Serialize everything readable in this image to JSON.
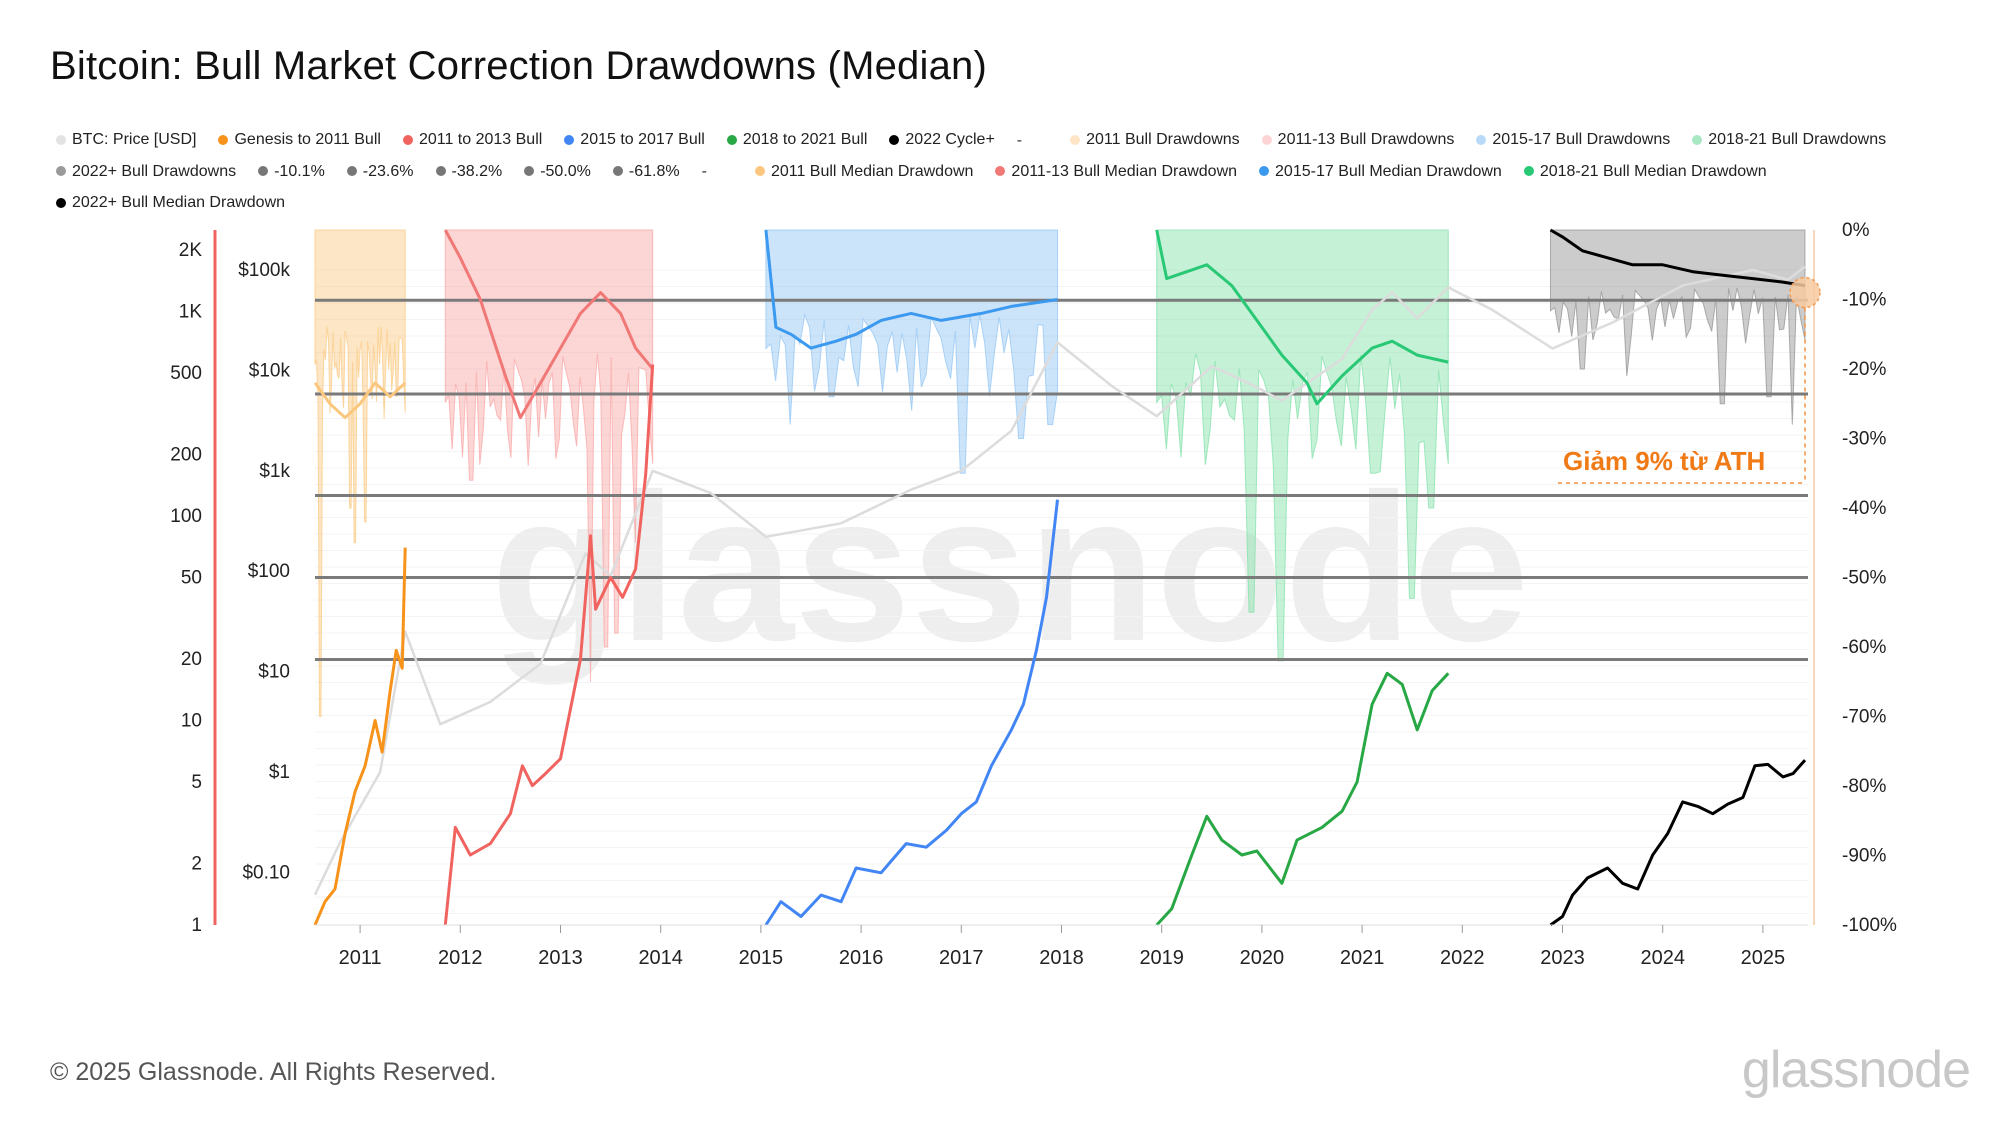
{
  "title": "Bitcoin: Bull Market Correction Drawdowns (Median)",
  "footer": "© 2025 Glassnode. All Rights Reserved.",
  "brand": "glassnode",
  "watermark": "glassnode",
  "annotation": "Giảm 9% từ ATH",
  "legend": [
    {
      "label": "BTC: Price [USD]",
      "color": "#e3e3e3"
    },
    {
      "label": "Genesis to 2011 Bull",
      "color": "#f7931a"
    },
    {
      "label": "2011 to 2013 Bull",
      "color": "#f0635f"
    },
    {
      "label": "2015 to 2017 Bull",
      "color": "#4285f4"
    },
    {
      "label": "2018 to 2021 Bull",
      "color": "#27a844"
    },
    {
      "label": "2022 Cycle+",
      "color": "#000000"
    },
    {
      "label": "-",
      "color": "",
      "sep": true
    },
    {
      "label": "2011 Bull Drawdowns",
      "color": "#fde5c5"
    },
    {
      "label": "2011-13 Bull Drawdowns",
      "color": "#fdd4d3"
    },
    {
      "label": "2015-17 Bull Drawdowns",
      "color": "#b9d9f8"
    },
    {
      "label": "2018-21 Bull Drawdowns",
      "color": "#a8e8c2"
    },
    {
      "label": "2022+ Bull Drawdowns",
      "color": "#9a9a9a"
    },
    {
      "label": "-10.1%",
      "color": "#777777"
    },
    {
      "label": "-23.6%",
      "color": "#777777"
    },
    {
      "label": "-38.2%",
      "color": "#777777"
    },
    {
      "label": "-50.0%",
      "color": "#777777"
    },
    {
      "label": "-61.8%",
      "color": "#777777"
    },
    {
      "label": "-",
      "color": "",
      "sep": true
    },
    {
      "label": "2011 Bull Median Drawdown",
      "color": "#fbc77e"
    },
    {
      "label": "2011-13 Bull Median Drawdown",
      "color": "#f07876"
    },
    {
      "label": "2015-17 Bull Median Drawdown",
      "color": "#3b99ef"
    },
    {
      "label": "2018-21 Bull Median Drawdown",
      "color": "#28c875"
    },
    {
      "label": "2022+ Bull Median Drawdown",
      "color": "#000000"
    }
  ],
  "chart_data": {
    "type": "line",
    "x_ticks": [
      "2011",
      "2012",
      "2013",
      "2014",
      "2015",
      "2016",
      "2017",
      "2018",
      "2019",
      "2020",
      "2021",
      "2022",
      "2023",
      "2024",
      "2025"
    ],
    "x_range": [
      2010.55,
      2025.45
    ],
    "y_left_outer_ticks": [
      "2K",
      "1K",
      "500",
      "200",
      "100",
      "50",
      "20",
      "10",
      "5",
      "2",
      "1"
    ],
    "y_left_outer_range": [
      1,
      2500
    ],
    "y_left_outer_scale": "log",
    "y_left_inner_ticks": [
      "$100k",
      "$10k",
      "$1k",
      "$100",
      "$10",
      "$1",
      "$0.10"
    ],
    "y_left_inner_range": [
      0.03,
      250000
    ],
    "y_left_inner_scale": "log",
    "y_right_ticks": [
      "0%",
      "-10%",
      "-20%",
      "-30%",
      "-40%",
      "-50%",
      "-60%",
      "-70%",
      "-80%",
      "-90%",
      "-100%"
    ],
    "y_right_range": [
      -100,
      0
    ],
    "fib_levels": [
      -10.1,
      -23.6,
      -38.2,
      -50.0,
      -61.8
    ],
    "series": [
      {
        "name": "BTC: Price [USD]",
        "color": "#dcdcdc",
        "axis": "price",
        "points": [
          [
            2010.55,
            0.06
          ],
          [
            2010.8,
            0.2
          ],
          [
            2011.2,
            1
          ],
          [
            2011.45,
            25
          ],
          [
            2011.8,
            3
          ],
          [
            2012.3,
            5
          ],
          [
            2012.8,
            12
          ],
          [
            2013.25,
            150
          ],
          [
            2013.5,
            90
          ],
          [
            2013.92,
            1000
          ],
          [
            2014.5,
            600
          ],
          [
            2015.05,
            220
          ],
          [
            2015.8,
            300
          ],
          [
            2016.5,
            650
          ],
          [
            2017.0,
            1000
          ],
          [
            2017.5,
            2500
          ],
          [
            2017.96,
            19000
          ],
          [
            2018.5,
            7000
          ],
          [
            2018.95,
            3500
          ],
          [
            2019.5,
            11000
          ],
          [
            2019.9,
            7200
          ],
          [
            2020.2,
            5000
          ],
          [
            2020.8,
            13000
          ],
          [
            2021.1,
            40000
          ],
          [
            2021.3,
            60000
          ],
          [
            2021.55,
            33000
          ],
          [
            2021.86,
            67000
          ],
          [
            2022.3,
            40000
          ],
          [
            2022.9,
            16500
          ],
          [
            2023.5,
            30000
          ],
          [
            2024.2,
            70000
          ],
          [
            2024.9,
            100000
          ],
          [
            2025.25,
            80000
          ],
          [
            2025.42,
            108000
          ]
        ]
      },
      {
        "name": "Genesis to 2011 Bull",
        "color": "#f7931a",
        "axis": "multiple",
        "points": [
          [
            2010.55,
            1.0
          ],
          [
            2010.65,
            1.3
          ],
          [
            2010.75,
            1.5
          ],
          [
            2010.85,
            2.8
          ],
          [
            2010.95,
            4.5
          ],
          [
            2011.05,
            6
          ],
          [
            2011.15,
            10
          ],
          [
            2011.22,
            7
          ],
          [
            2011.3,
            14
          ],
          [
            2011.36,
            22
          ],
          [
            2011.42,
            18
          ],
          [
            2011.45,
            70
          ]
        ]
      },
      {
        "name": "2011 to 2013 Bull",
        "color": "#f0635f",
        "axis": "multiple",
        "points": [
          [
            2011.85,
            1.0
          ],
          [
            2011.95,
            3.0
          ],
          [
            2012.1,
            2.2
          ],
          [
            2012.3,
            2.5
          ],
          [
            2012.5,
            3.5
          ],
          [
            2012.62,
            6
          ],
          [
            2012.72,
            4.8
          ],
          [
            2012.85,
            5.5
          ],
          [
            2013.0,
            6.5
          ],
          [
            2013.2,
            20
          ],
          [
            2013.3,
            80
          ],
          [
            2013.35,
            35
          ],
          [
            2013.5,
            50
          ],
          [
            2013.62,
            40
          ],
          [
            2013.75,
            55
          ],
          [
            2013.85,
            160
          ],
          [
            2013.92,
            550
          ]
        ]
      },
      {
        "name": "2015 to 2017 Bull",
        "color": "#4285f4",
        "axis": "multiple",
        "points": [
          [
            2015.05,
            1.0
          ],
          [
            2015.2,
            1.3
          ],
          [
            2015.4,
            1.1
          ],
          [
            2015.6,
            1.4
          ],
          [
            2015.8,
            1.3
          ],
          [
            2015.95,
            1.9
          ],
          [
            2016.2,
            1.8
          ],
          [
            2016.45,
            2.5
          ],
          [
            2016.65,
            2.4
          ],
          [
            2016.85,
            2.9
          ],
          [
            2017.0,
            3.5
          ],
          [
            2017.15,
            4
          ],
          [
            2017.3,
            6
          ],
          [
            2017.5,
            9
          ],
          [
            2017.62,
            12
          ],
          [
            2017.75,
            22
          ],
          [
            2017.85,
            40
          ],
          [
            2017.96,
            120
          ]
        ]
      },
      {
        "name": "2018 to 2021 Bull",
        "color": "#27a844",
        "axis": "multiple",
        "points": [
          [
            2018.95,
            1.0
          ],
          [
            2019.1,
            1.2
          ],
          [
            2019.3,
            2.2
          ],
          [
            2019.45,
            3.4
          ],
          [
            2019.6,
            2.6
          ],
          [
            2019.8,
            2.2
          ],
          [
            2019.95,
            2.3
          ],
          [
            2020.2,
            1.6
          ],
          [
            2020.35,
            2.6
          ],
          [
            2020.6,
            3
          ],
          [
            2020.8,
            3.6
          ],
          [
            2020.95,
            5
          ],
          [
            2021.1,
            12
          ],
          [
            2021.25,
            17
          ],
          [
            2021.4,
            15
          ],
          [
            2021.55,
            9
          ],
          [
            2021.7,
            14
          ],
          [
            2021.86,
            17
          ]
        ]
      },
      {
        "name": "2022 Cycle+",
        "color": "#000000",
        "axis": "multiple",
        "points": [
          [
            2022.88,
            1.0
          ],
          [
            2023.0,
            1.1
          ],
          [
            2023.1,
            1.4
          ],
          [
            2023.25,
            1.7
          ],
          [
            2023.45,
            1.9
          ],
          [
            2023.6,
            1.6
          ],
          [
            2023.75,
            1.5
          ],
          [
            2023.9,
            2.2
          ],
          [
            2024.05,
            2.8
          ],
          [
            2024.2,
            4.0
          ],
          [
            2024.35,
            3.8
          ],
          [
            2024.5,
            3.5
          ],
          [
            2024.65,
            3.9
          ],
          [
            2024.8,
            4.2
          ],
          [
            2024.92,
            6.0
          ],
          [
            2025.05,
            6.1
          ],
          [
            2025.2,
            5.3
          ],
          [
            2025.3,
            5.5
          ],
          [
            2025.42,
            6.4
          ]
        ]
      }
    ],
    "median_drawdowns": [
      {
        "name": "2011 Bull Median Drawdown",
        "color": "#fbc77e",
        "points": [
          [
            2010.55,
            -22
          ],
          [
            2010.7,
            -25
          ],
          [
            2010.85,
            -27
          ],
          [
            2011.0,
            -25
          ],
          [
            2011.15,
            -22
          ],
          [
            2011.3,
            -24
          ],
          [
            2011.45,
            -22
          ]
        ]
      },
      {
        "name": "2011-13 Bull Median Drawdown",
        "color": "#f07876",
        "points": [
          [
            2011.85,
            0
          ],
          [
            2012.0,
            -4
          ],
          [
            2012.2,
            -10
          ],
          [
            2012.45,
            -21
          ],
          [
            2012.6,
            -27
          ],
          [
            2012.8,
            -22
          ],
          [
            2013.0,
            -17
          ],
          [
            2013.2,
            -12
          ],
          [
            2013.4,
            -9
          ],
          [
            2013.6,
            -12
          ],
          [
            2013.75,
            -17
          ],
          [
            2013.92,
            -20
          ]
        ]
      },
      {
        "name": "2015-17 Bull Median Drawdown",
        "color": "#3b99ef",
        "points": [
          [
            2015.05,
            0
          ],
          [
            2015.15,
            -14
          ],
          [
            2015.3,
            -15
          ],
          [
            2015.5,
            -17
          ],
          [
            2015.75,
            -16
          ],
          [
            2015.95,
            -15
          ],
          [
            2016.2,
            -13
          ],
          [
            2016.5,
            -12
          ],
          [
            2016.8,
            -13
          ],
          [
            2017.2,
            -12
          ],
          [
            2017.5,
            -11
          ],
          [
            2017.96,
            -10
          ]
        ]
      },
      {
        "name": "2018-21 Bull Median Drawdown",
        "color": "#28c875",
        "points": [
          [
            2018.95,
            0
          ],
          [
            2019.05,
            -7
          ],
          [
            2019.25,
            -6
          ],
          [
            2019.45,
            -5
          ],
          [
            2019.7,
            -8
          ],
          [
            2019.95,
            -13
          ],
          [
            2020.2,
            -18
          ],
          [
            2020.45,
            -22
          ],
          [
            2020.55,
            -25
          ],
          [
            2020.8,
            -21
          ],
          [
            2021.1,
            -17
          ],
          [
            2021.3,
            -16
          ],
          [
            2021.55,
            -18
          ],
          [
            2021.86,
            -19
          ]
        ]
      },
      {
        "name": "2022+ Bull Median Drawdown",
        "color": "#000000",
        "points": [
          [
            2022.88,
            0
          ],
          [
            2023.0,
            -1
          ],
          [
            2023.2,
            -3
          ],
          [
            2023.45,
            -4
          ],
          [
            2023.7,
            -5
          ],
          [
            2024.0,
            -5
          ],
          [
            2024.3,
            -6
          ],
          [
            2024.6,
            -6.5
          ],
          [
            2024.9,
            -7
          ],
          [
            2025.2,
            -7.5
          ],
          [
            2025.42,
            -8
          ]
        ]
      }
    ],
    "drawdown_bands": [
      {
        "name": "2011 Bull Drawdowns",
        "color": "#fbc77e",
        "x0": 2010.55,
        "x1": 2011.45,
        "depth": -25,
        "spikes": [
          [
            2010.6,
            -70
          ],
          [
            2010.9,
            -40
          ],
          [
            2010.95,
            -45
          ],
          [
            2011.05,
            -42
          ]
        ]
      },
      {
        "name": "2011-13 Bull Drawdowns",
        "color": "#f9a3a2",
        "x0": 2011.85,
        "x1": 2013.92,
        "depth": -32,
        "spikes": [
          [
            2012.1,
            -36
          ],
          [
            2013.3,
            -65
          ],
          [
            2013.45,
            -60
          ],
          [
            2013.55,
            -58
          ],
          [
            2013.75,
            -45
          ]
        ]
      },
      {
        "name": "2015-17 Bull Drawdowns",
        "color": "#8fc3f4",
        "x0": 2015.05,
        "x1": 2017.96,
        "depth": -22,
        "spikes": [
          [
            2015.3,
            -28
          ],
          [
            2015.7,
            -24
          ],
          [
            2016.5,
            -26
          ],
          [
            2017.0,
            -35
          ],
          [
            2017.6,
            -30
          ],
          [
            2017.9,
            -28
          ]
        ]
      },
      {
        "name": "2018-21 Bull Drawdowns",
        "color": "#7fdfa6",
        "x0": 2018.95,
        "x1": 2021.86,
        "depth": -32,
        "spikes": [
          [
            2019.9,
            -55
          ],
          [
            2020.2,
            -62
          ],
          [
            2021.1,
            -35
          ],
          [
            2021.5,
            -53
          ],
          [
            2021.7,
            -40
          ]
        ]
      },
      {
        "name": "2022+ Bull Drawdowns",
        "color": "#8f8f8f",
        "x0": 2022.88,
        "x1": 2025.42,
        "depth": -15,
        "spikes": [
          [
            2023.2,
            -20
          ],
          [
            2023.65,
            -21
          ],
          [
            2024.6,
            -25
          ],
          [
            2025.05,
            -24
          ],
          [
            2025.3,
            -28
          ]
        ]
      }
    ],
    "current_marker": {
      "x": 2025.42,
      "y": -9,
      "color": "#f5a35c"
    }
  }
}
